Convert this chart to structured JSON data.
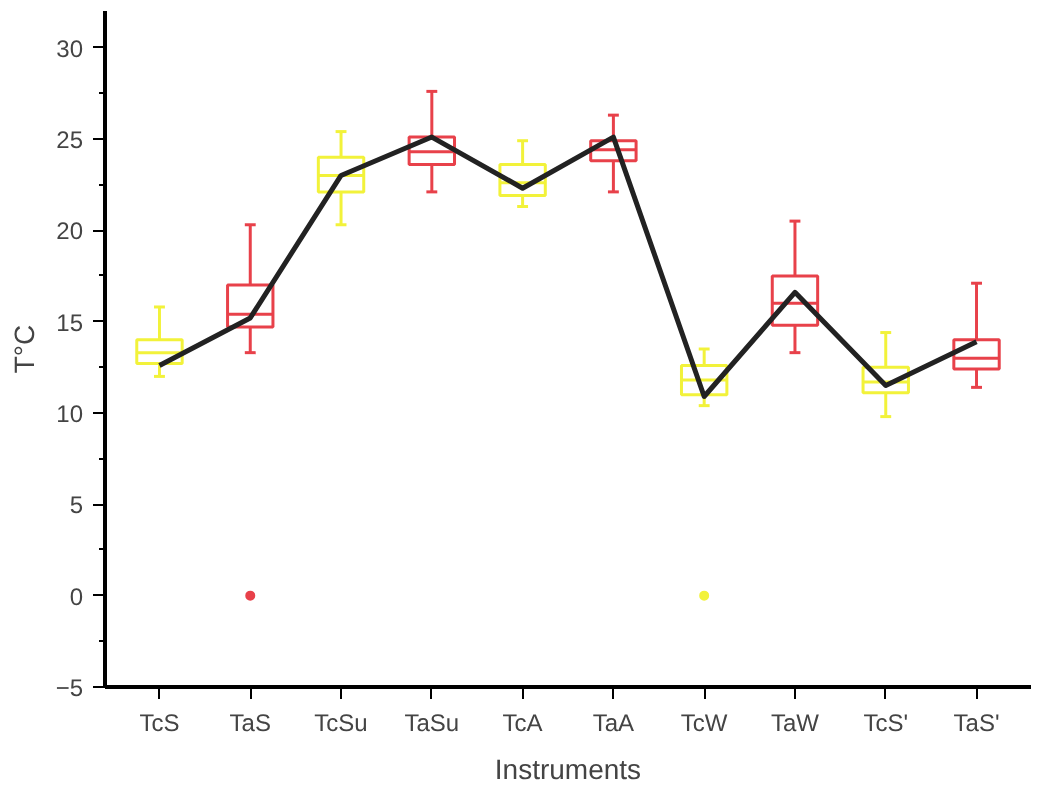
{
  "chart_data": {
    "type": "box",
    "xlabel": "Instruments",
    "ylabel": "T°C",
    "categories": [
      "TcS",
      "TaS",
      "TcSu",
      "TaSu",
      "TcA",
      "TaA",
      "TcW",
      "TaW",
      "TcS'",
      "TaS'"
    ],
    "colors": [
      "#f2f23a",
      "#e8414a",
      "#f2f23a",
      "#e8414a",
      "#f2f23a",
      "#e8414a",
      "#f2f23a",
      "#e8414a",
      "#f2f23a",
      "#e8414a"
    ],
    "boxes": [
      {
        "low": 12,
        "q1": 12.7,
        "median": 13.3,
        "q3": 14,
        "high": 15.8
      },
      {
        "low": 13.3,
        "q1": 14.7,
        "median": 15.4,
        "q3": 17,
        "high": 20.3,
        "outliers": [
          0
        ]
      },
      {
        "low": 20.3,
        "q1": 22.1,
        "median": 23,
        "q3": 24,
        "high": 25.4
      },
      {
        "low": 22.1,
        "q1": 23.6,
        "median": 24.3,
        "q3": 25.1,
        "high": 27.6
      },
      {
        "low": 21.3,
        "q1": 21.9,
        "median": 22.6,
        "q3": 23.6,
        "high": 24.9
      },
      {
        "low": 22.1,
        "q1": 23.8,
        "median": 24.4,
        "q3": 24.9,
        "high": 26.3
      },
      {
        "low": 10.4,
        "q1": 11,
        "median": 11.8,
        "q3": 12.6,
        "high": 13.5,
        "outliers": [
          0
        ]
      },
      {
        "low": 13.3,
        "q1": 14.8,
        "median": 16,
        "q3": 17.5,
        "high": 20.5
      },
      {
        "low": 9.8,
        "q1": 11.1,
        "median": 11.7,
        "q3": 12.5,
        "high": 14.4
      },
      {
        "low": 11.4,
        "q1": 12.4,
        "median": 13,
        "q3": 14,
        "high": 17.1
      }
    ],
    "series": [
      {
        "type": "line",
        "color": "#222222",
        "values": [
          12.6,
          15.2,
          23,
          25.1,
          22.3,
          25.1,
          10.9,
          16.6,
          11.5,
          13.9
        ]
      }
    ],
    "ylim": [
      -5,
      32
    ],
    "yticks": [
      -5,
      0,
      5,
      10,
      15,
      20,
      25,
      30
    ],
    "grid": false
  }
}
